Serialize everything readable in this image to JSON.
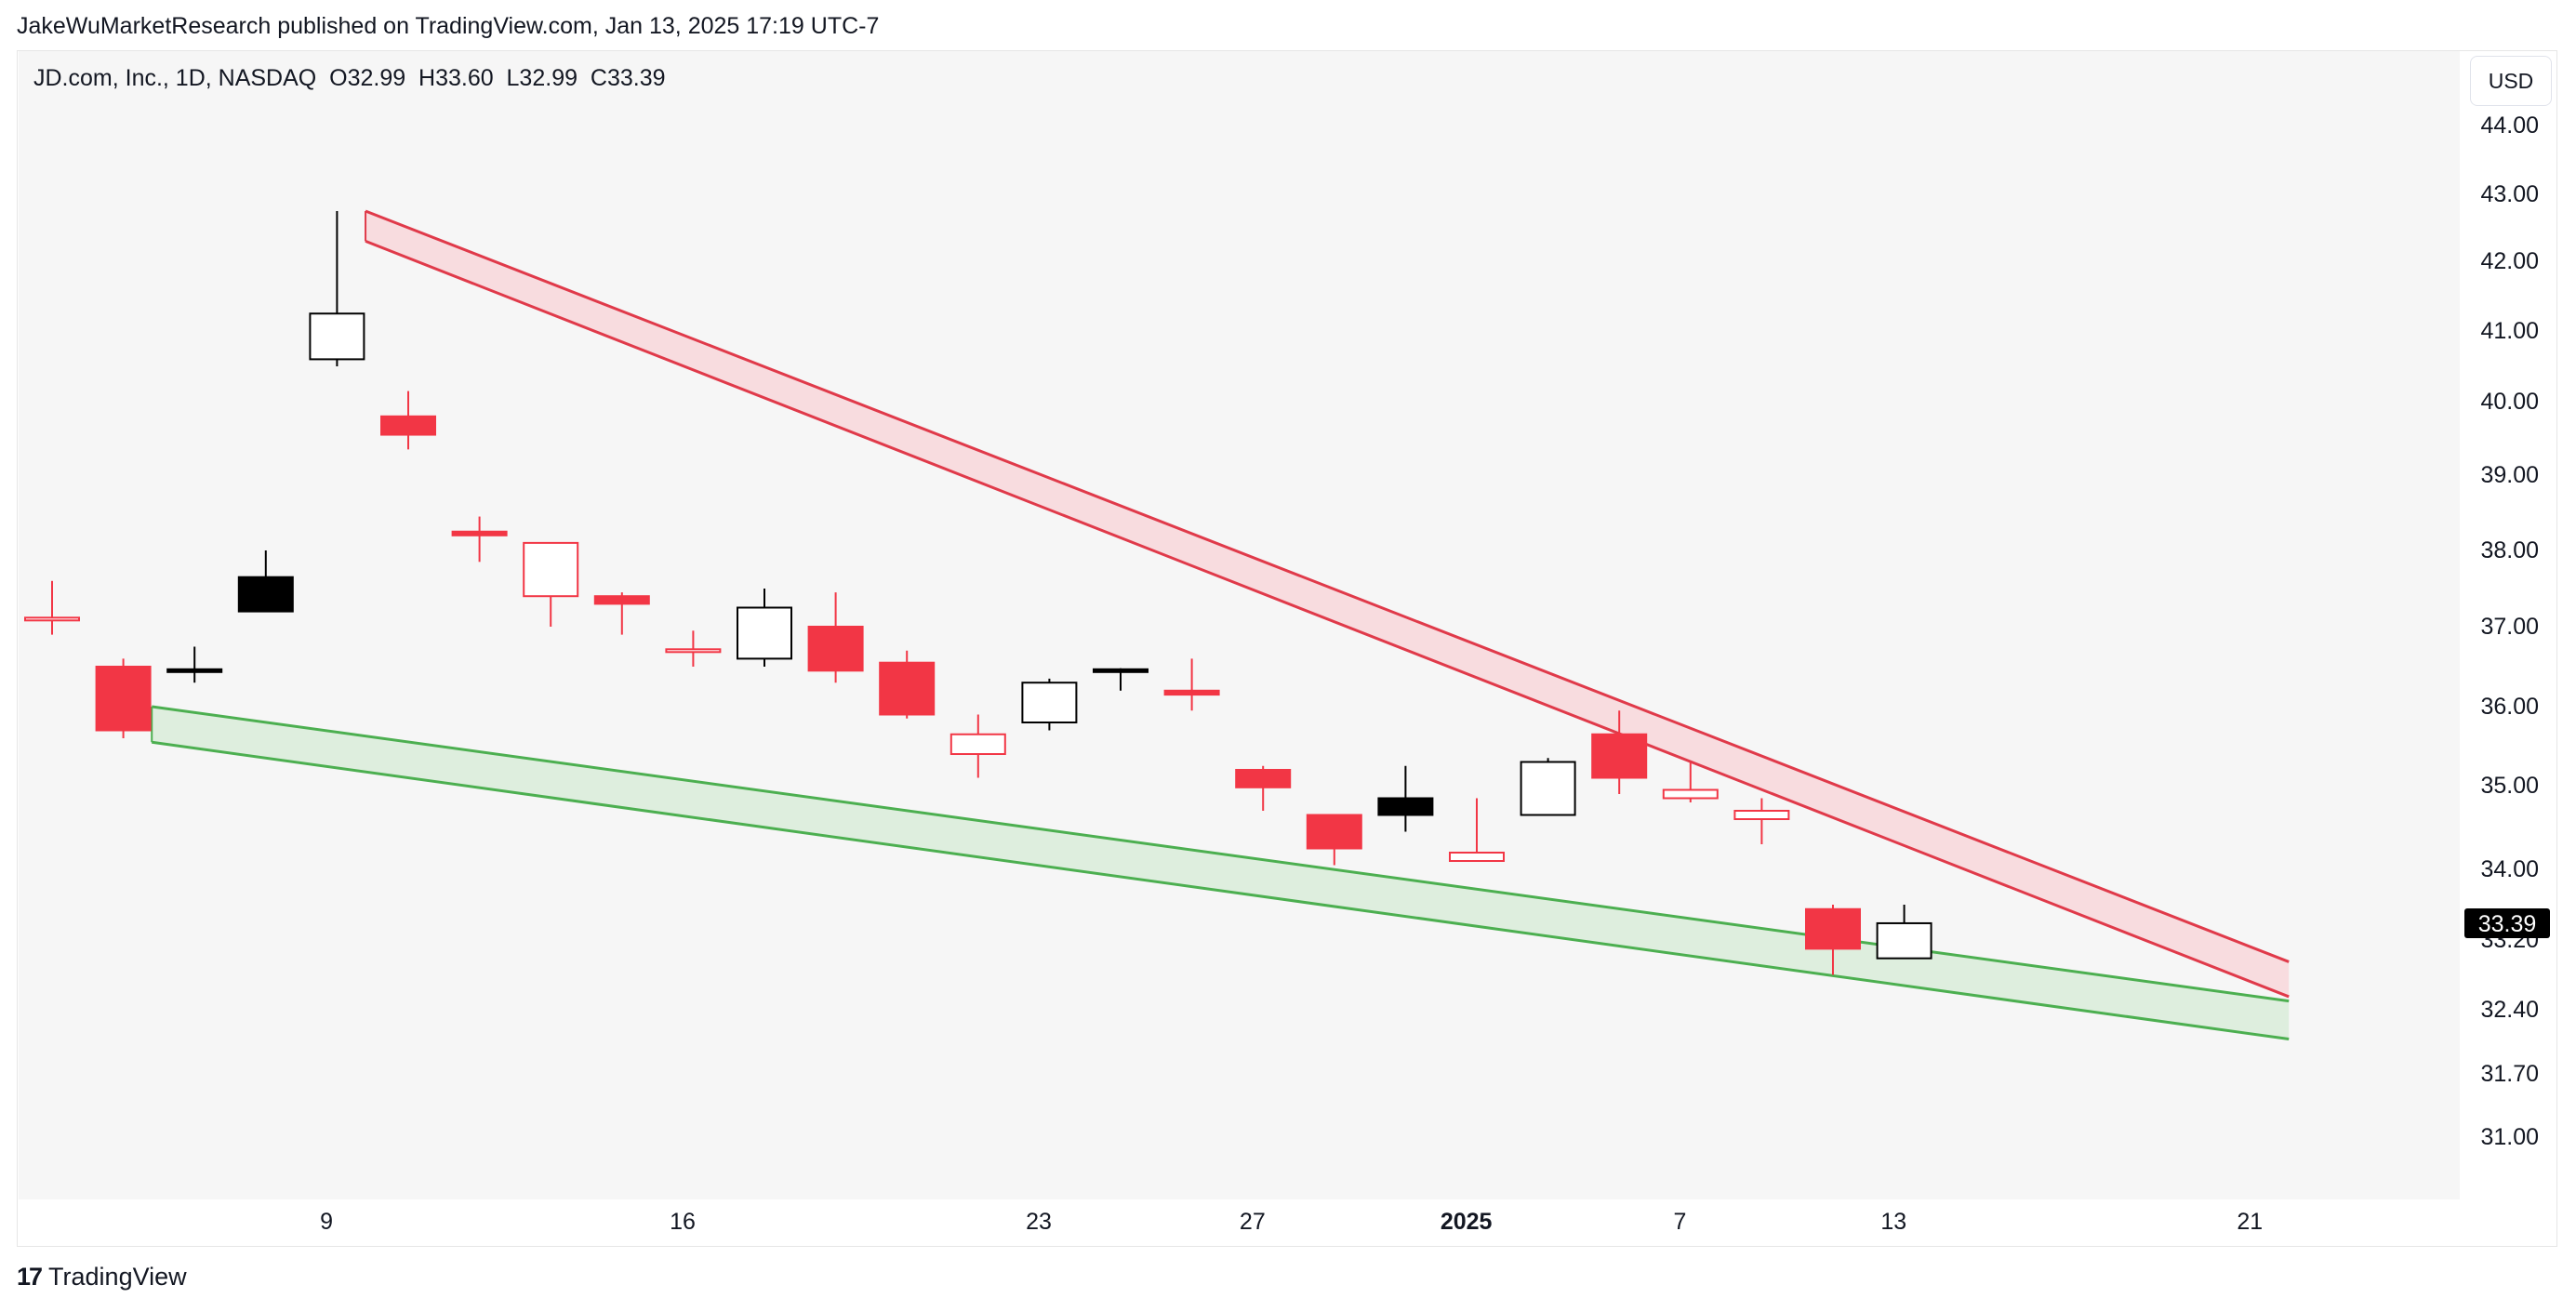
{
  "publisher_line": "JakeWuMarketResearch published on TradingView.com, Jan 13, 2025 17:19 UTC-7",
  "symbol_info": "JD.com, Inc., 1D, NASDAQ  O32.99  H33.60  L32.99  C33.39",
  "currency_button": "USD",
  "footer": {
    "brand_mark": "17",
    "brand_name": "TradingView"
  },
  "colors": {
    "bg": "#f6f6f6",
    "bear": "#f23645",
    "bull_stroke": "#000000",
    "resistance": "#e03a4a",
    "resistance_fill": "#f8d7da",
    "support": "#4caf50",
    "support_fill": "#d9ecd9",
    "price_tag": "#000000"
  },
  "chart_data": {
    "type": "candlestick",
    "title": "JD.com, Inc., 1D, NASDAQ",
    "y_ticks": [
      "44.00",
      "43.00",
      "42.00",
      "41.00",
      "40.00",
      "39.00",
      "38.00",
      "37.00",
      "36.00",
      "35.00",
      "34.00",
      "33.20",
      "32.40",
      "31.70",
      "31.00"
    ],
    "x_ticks": [
      {
        "label": "9",
        "bold": false,
        "slot": 4.4
      },
      {
        "label": "16",
        "bold": false,
        "slot": 9.4
      },
      {
        "label": "23",
        "bold": false,
        "slot": 14.4
      },
      {
        "label": "27",
        "bold": false,
        "slot": 17.4
      },
      {
        "label": "2025",
        "bold": true,
        "slot": 20.4
      },
      {
        "label": "7",
        "bold": false,
        "slot": 23.4
      },
      {
        "label": "13",
        "bold": false,
        "slot": 26.4
      },
      {
        "label": "21",
        "bold": false,
        "slot": 31.4
      }
    ],
    "last_price": "33.39",
    "candles": [
      {
        "o": 37.1,
        "h": 37.6,
        "l": 36.9,
        "c": 37.1,
        "style": "bear_hollow"
      },
      {
        "o": 36.5,
        "h": 36.6,
        "l": 35.6,
        "c": 35.7,
        "style": "bear_filled"
      },
      {
        "o": 36.42,
        "h": 36.75,
        "l": 36.3,
        "c": 36.45,
        "style": "bull_filled"
      },
      {
        "o": 37.2,
        "h": 38.0,
        "l": 37.2,
        "c": 37.65,
        "style": "bull_filled"
      },
      {
        "o": 40.6,
        "h": 42.75,
        "l": 40.5,
        "c": 41.25,
        "style": "bull_hollow"
      },
      {
        "o": 39.8,
        "h": 40.15,
        "l": 39.35,
        "c": 39.55,
        "style": "bear_filled"
      },
      {
        "o": 38.25,
        "h": 38.45,
        "l": 37.85,
        "c": 38.2,
        "style": "bear_filled"
      },
      {
        "o": 38.1,
        "h": 38.1,
        "l": 37.0,
        "c": 37.4,
        "style": "bear_hollow"
      },
      {
        "o": 37.4,
        "h": 37.45,
        "l": 36.9,
        "c": 37.3,
        "style": "bear_filled"
      },
      {
        "o": 36.7,
        "h": 36.95,
        "l": 36.5,
        "c": 36.7,
        "style": "bear_hollow"
      },
      {
        "o": 36.6,
        "h": 37.5,
        "l": 36.5,
        "c": 37.25,
        "style": "bull_hollow"
      },
      {
        "o": 37.0,
        "h": 37.45,
        "l": 36.3,
        "c": 36.45,
        "style": "bear_filled"
      },
      {
        "o": 36.55,
        "h": 36.7,
        "l": 35.85,
        "c": 35.9,
        "style": "bear_filled"
      },
      {
        "o": 35.65,
        "h": 35.9,
        "l": 35.1,
        "c": 35.4,
        "style": "bear_hollow"
      },
      {
        "o": 35.8,
        "h": 36.35,
        "l": 35.7,
        "c": 36.3,
        "style": "bull_hollow"
      },
      {
        "o": 36.42,
        "h": 36.48,
        "l": 36.2,
        "c": 36.45,
        "style": "bull_filled"
      },
      {
        "o": 36.2,
        "h": 36.6,
        "l": 35.95,
        "c": 36.15,
        "style": "bear_filled"
      },
      {
        "o": 35.2,
        "h": 35.25,
        "l": 34.7,
        "c": 34.98,
        "style": "bear_filled"
      },
      {
        "o": 34.65,
        "h": 34.65,
        "l": 34.05,
        "c": 34.25,
        "style": "bear_filled"
      },
      {
        "o": 34.65,
        "h": 35.25,
        "l": 34.45,
        "c": 34.85,
        "style": "bull_filled"
      },
      {
        "o": 34.2,
        "h": 34.85,
        "l": 34.1,
        "c": 34.1,
        "style": "bear_hollow"
      },
      {
        "o": 34.65,
        "h": 35.35,
        "l": 34.65,
        "c": 35.3,
        "style": "bull_hollow"
      },
      {
        "o": 35.65,
        "h": 35.95,
        "l": 34.9,
        "c": 35.1,
        "style": "bear_filled"
      },
      {
        "o": 34.95,
        "h": 35.3,
        "l": 34.8,
        "c": 34.85,
        "style": "bear_hollow"
      },
      {
        "o": 34.7,
        "h": 34.85,
        "l": 34.3,
        "c": 34.6,
        "style": "bear_hollow"
      },
      {
        "o": 33.55,
        "h": 33.6,
        "l": 32.8,
        "c": 33.1,
        "style": "bear_filled"
      },
      {
        "o": 32.99,
        "h": 33.6,
        "l": 32.99,
        "c": 33.39,
        "style": "bull_hollow"
      }
    ],
    "channels": [
      {
        "name": "",
        "kind": "resistance",
        "upper": [
          {
            "slot": 4.4,
            "price": 42.75
          },
          {
            "slot": 31.4,
            "price": 32.95
          }
        ],
        "lower": [
          {
            "slot": 4.4,
            "price": 42.3
          },
          {
            "slot": 31.4,
            "price": 32.55
          }
        ]
      },
      {
        "name": "",
        "kind": "support",
        "upper": [
          {
            "slot": 1.4,
            "price": 36.0
          },
          {
            "slot": 31.4,
            "price": 32.5
          }
        ],
        "lower": [
          {
            "slot": 1.4,
            "price": 35.55
          },
          {
            "slot": 31.4,
            "price": 32.08
          }
        ]
      }
    ]
  }
}
